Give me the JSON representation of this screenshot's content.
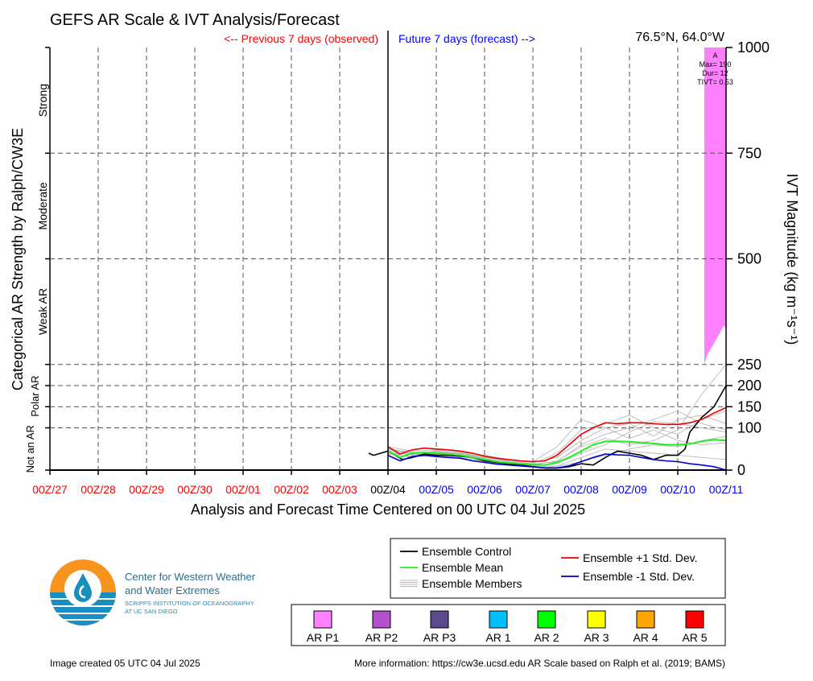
{
  "header": {
    "title": "GEFS AR Scale & IVT Analysis/Forecast",
    "previous_label": "<-- Previous 7 days (observed)",
    "future_label": "Future 7 days (forecast) -->",
    "location": "76.5°N, 64.0°W"
  },
  "colors": {
    "observed": "#ff0000",
    "forecast": "#0000ff",
    "control": "#000000",
    "mean": "#22ee22",
    "plus_std": "#ee0000",
    "minus_std": "#0000cc",
    "members": "#b8b8b8",
    "ar_p1": "#ff80ff"
  },
  "chart_data": {
    "type": "line",
    "xlabel": "Analysis and Forecast Time Centered on 00 UTC 04 Jul 2025",
    "ylabel_right": "IVT Magnitude (kg m⁻¹s⁻¹)",
    "ylabel_left": "Categorical AR Strength by Ralph/CW3E",
    "x_ticks": [
      "00Z/27",
      "00Z/28",
      "00Z/29",
      "00Z/30",
      "00Z/01",
      "00Z/02",
      "00Z/03",
      "00Z/04",
      "00Z/05",
      "00Z/06",
      "00Z/07",
      "00Z/08",
      "00Z/09",
      "00Z/10",
      "00Z/11"
    ],
    "x_tick_colors": [
      "observed",
      "observed",
      "observed",
      "observed",
      "observed",
      "observed",
      "observed",
      "control",
      "forecast",
      "forecast",
      "forecast",
      "forecast",
      "forecast",
      "forecast",
      "forecast"
    ],
    "x_range_days": [
      -7,
      7
    ],
    "y_ticks": [
      0,
      100,
      150,
      200,
      250,
      500,
      750,
      1000
    ],
    "ylim": [
      0,
      1000
    ],
    "categories": [
      {
        "label": "Not an AR",
        "range": [
          0,
          100
        ]
      },
      {
        "label": "Polar AR",
        "range": [
          100,
          250
        ]
      },
      {
        "label": "Weak AR",
        "range": [
          250,
          500
        ]
      },
      {
        "label": "Moderate",
        "range": [
          500,
          750
        ]
      },
      {
        "label": "Strong",
        "range": [
          750,
          1000
        ]
      }
    ],
    "grid": true,
    "series": [
      {
        "name": "Ensemble Control",
        "color_key": "control",
        "x": [
          -0.4,
          -0.3,
          -0.15,
          0,
          0.15,
          0.3,
          0.5,
          0.75,
          1.0,
          1.25,
          1.5,
          1.75,
          2.0,
          2.25,
          2.5,
          2.75,
          3.0,
          3.25,
          3.5,
          3.75,
          4.0,
          4.25,
          4.5,
          4.75,
          5.0,
          5.25,
          5.5,
          5.75,
          6.0,
          6.15,
          6.25,
          6.5,
          6.75,
          7.0
        ],
        "y": [
          40,
          35,
          40,
          45,
          35,
          25,
          30,
          38,
          35,
          35,
          33,
          30,
          22,
          18,
          15,
          12,
          8,
          5,
          5,
          8,
          15,
          12,
          30,
          45,
          40,
          35,
          25,
          35,
          35,
          50,
          90,
          125,
          150,
          200
        ]
      },
      {
        "name": "Ensemble Mean",
        "color_key": "mean",
        "x": [
          0,
          0.25,
          0.5,
          0.75,
          1.0,
          1.25,
          1.5,
          1.75,
          2.0,
          2.25,
          2.5,
          2.75,
          3.0,
          3.25,
          3.5,
          3.75,
          4.0,
          4.25,
          4.5,
          4.75,
          5.0,
          5.25,
          5.5,
          5.75,
          6.0,
          6.25,
          6.5,
          6.75,
          7.0
        ],
        "y": [
          45,
          30,
          40,
          42,
          40,
          38,
          35,
          30,
          25,
          20,
          17,
          15,
          13,
          12,
          18,
          30,
          45,
          60,
          68,
          68,
          67,
          65,
          63,
          60,
          60,
          62,
          68,
          72,
          70
        ]
      },
      {
        "name": "Ensemble +1 Std. Dev.",
        "color_key": "plus_std",
        "x": [
          0,
          0.25,
          0.5,
          0.75,
          1.0,
          1.25,
          1.5,
          1.75,
          2.0,
          2.25,
          2.5,
          2.75,
          3.0,
          3.25,
          3.5,
          3.75,
          4.0,
          4.25,
          4.5,
          4.75,
          5.0,
          5.25,
          5.5,
          5.75,
          6.0,
          6.25,
          6.5,
          6.75,
          7.0
        ],
        "y": [
          55,
          38,
          48,
          52,
          50,
          48,
          45,
          40,
          33,
          28,
          25,
          22,
          20,
          22,
          35,
          60,
          85,
          100,
          112,
          110,
          112,
          112,
          110,
          108,
          108,
          112,
          120,
          135,
          148
        ]
      },
      {
        "name": "Ensemble -1 Std. Dev.",
        "color_key": "minus_std",
        "x": [
          0,
          0.25,
          0.5,
          0.75,
          1.0,
          1.25,
          1.5,
          1.75,
          2.0,
          2.25,
          2.5,
          2.75,
          3.0,
          3.25,
          3.5,
          3.75,
          4.0,
          4.25,
          4.5,
          4.75,
          5.0,
          5.25,
          5.5,
          5.75,
          6.0,
          6.25,
          6.5,
          6.75,
          7.0
        ],
        "y": [
          35,
          22,
          32,
          35,
          32,
          30,
          28,
          22,
          18,
          14,
          12,
          10,
          8,
          5,
          5,
          10,
          20,
          30,
          38,
          36,
          35,
          30,
          25,
          22,
          20,
          15,
          12,
          8,
          0
        ]
      }
    ],
    "ensemble_members": [
      {
        "x": [
          0,
          0.5,
          1.0,
          1.5,
          2.0,
          2.5,
          3.0,
          3.5,
          4.0,
          4.5,
          5.0,
          5.5,
          6.0,
          6.5,
          7.0
        ],
        "y": [
          50,
          42,
          42,
          38,
          30,
          20,
          15,
          40,
          95,
          110,
          130,
          100,
          85,
          120,
          140
        ]
      },
      {
        "x": [
          0,
          0.5,
          1.0,
          1.5,
          2.0,
          2.5,
          3.0,
          3.5,
          4.0,
          4.5,
          5.0,
          5.5,
          6.0,
          6.5,
          7.0
        ],
        "y": [
          40,
          38,
          36,
          32,
          25,
          18,
          12,
          22,
          55,
          75,
          60,
          70,
          95,
          180,
          250
        ]
      },
      {
        "x": [
          0,
          0.5,
          1.0,
          1.5,
          2.0,
          2.5,
          3.0,
          3.5,
          4.0,
          4.5,
          5.0,
          5.5,
          6.0,
          6.5,
          7.0
        ],
        "y": [
          45,
          35,
          40,
          36,
          28,
          16,
          10,
          15,
          40,
          60,
          90,
          115,
          110,
          100,
          90
        ]
      },
      {
        "x": [
          0,
          0.5,
          1.0,
          1.5,
          2.0,
          2.5,
          3.0,
          3.5,
          4.0,
          4.5,
          5.0,
          5.5,
          6.0,
          6.5,
          7.0
        ],
        "y": [
          42,
          30,
          38,
          34,
          22,
          14,
          8,
          10,
          30,
          50,
          45,
          40,
          35,
          30,
          25
        ]
      },
      {
        "x": [
          0,
          0.5,
          1.0,
          1.5,
          2.0,
          2.5,
          3.0,
          3.5,
          4.0,
          4.5,
          5.0,
          5.5,
          6.0,
          6.5,
          7.0
        ],
        "y": [
          55,
          45,
          48,
          42,
          35,
          25,
          20,
          55,
          120,
          100,
          110,
          80,
          120,
          130,
          110
        ]
      },
      {
        "x": [
          0,
          0.5,
          1.0,
          1.5,
          2.0,
          2.5,
          3.0,
          3.5,
          4.0,
          4.5,
          5.0,
          5.5,
          6.0,
          6.5,
          7.0
        ],
        "y": [
          38,
          32,
          34,
          30,
          20,
          12,
          6,
          8,
          20,
          35,
          50,
          60,
          55,
          70,
          80
        ]
      },
      {
        "x": [
          0,
          0.5,
          1.0,
          1.5,
          2.0,
          2.5,
          3.0,
          3.5,
          4.0,
          4.5,
          5.0,
          5.5,
          6.0,
          6.5,
          7.0
        ],
        "y": [
          48,
          40,
          44,
          40,
          32,
          22,
          18,
          30,
          70,
          100,
          75,
          95,
          70,
          60,
          65
        ]
      },
      {
        "x": [
          0,
          0.5,
          1.0,
          1.5,
          2.0,
          2.5,
          3.0,
          3.5,
          4.0,
          4.5,
          5.0,
          5.5,
          6.0,
          6.5,
          7.0
        ],
        "y": [
          52,
          36,
          46,
          38,
          30,
          20,
          14,
          20,
          60,
          85,
          100,
          120,
          140,
          110,
          95
        ]
      }
    ],
    "ar_periods": [
      {
        "label": "A",
        "category": "AR P1",
        "color_key": "ar_p1",
        "start_day": 6.55,
        "end_day": 7.0,
        "max_text": "Max= 190",
        "dur_text": "Dur= 12",
        "tivt_text": "TIVT= 0.53"
      }
    ]
  },
  "legend": {
    "lines": [
      {
        "label": "Ensemble Control",
        "color_key": "control"
      },
      {
        "label": "Ensemble Mean",
        "color_key": "mean"
      },
      {
        "label": "Ensemble Members",
        "color_key": "members"
      },
      {
        "label": "Ensemble +1 Std. Dev.",
        "color_key": "plus_std"
      },
      {
        "label": "Ensemble -1 Std. Dev.",
        "color_key": "minus_std"
      }
    ],
    "ar_scale": [
      {
        "label": "AR P1",
        "color": "#ff80ff"
      },
      {
        "label": "AR P2",
        "color": "#b452cd"
      },
      {
        "label": "AR P3",
        "color": "#5b4a8b"
      },
      {
        "label": "AR 1",
        "color": "#00bfff"
      },
      {
        "label": "AR 2",
        "color": "#00ff00"
      },
      {
        "label": "AR 3",
        "color": "#ffff00"
      },
      {
        "label": "AR 4",
        "color": "#ffa500"
      },
      {
        "label": "AR 5",
        "color": "#ff0000"
      }
    ]
  },
  "logo": {
    "line1": "Center for Western Weather",
    "line2": "and Water Extremes",
    "line3": "SCRIPPS INSTITUTION OF OCEANOGRAPHY",
    "line4": "AT UC SAN DIEGO",
    "colors": {
      "orange": "#f7941d",
      "blue": "#1a8fbf",
      "dark": "#2a6f8f"
    }
  },
  "footer": {
    "created": "Image created 05 UTC 04 Jul 2025",
    "more_info": "More information: https://cw3e.ucsd.edu AR Scale based on Ralph et al. (2019; BAMS)"
  }
}
